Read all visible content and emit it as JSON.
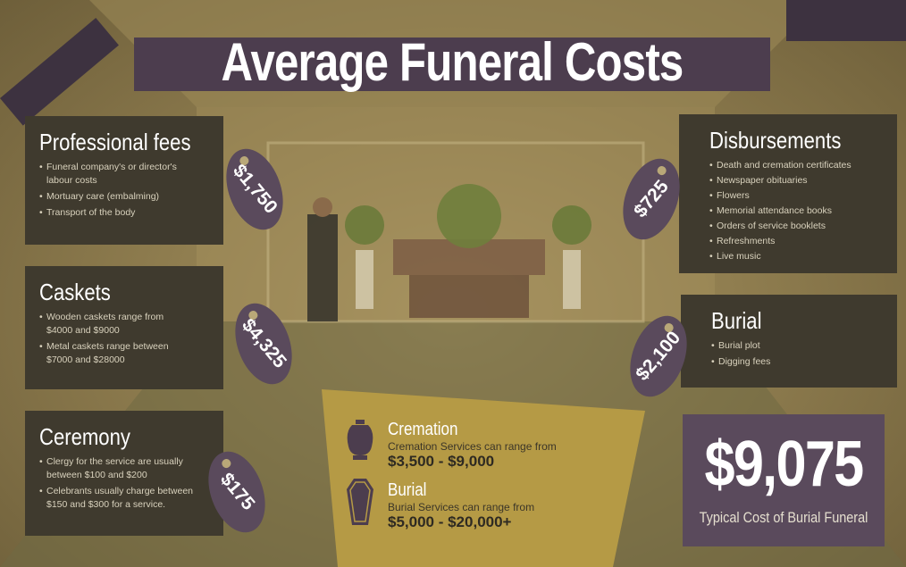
{
  "title": "Average Funeral Costs",
  "colors": {
    "panel": "#3f3a2e",
    "accent": "#5a4a5c",
    "gold": "#b59a45"
  },
  "sections": {
    "professional": {
      "heading": "Professional fees",
      "tag": "$1,750",
      "items": [
        "Funeral company's or director's labour costs",
        "Mortuary care (embalming)",
        "Transport of the body"
      ]
    },
    "caskets": {
      "heading": "Caskets",
      "tag": "$4,325",
      "items": [
        "Wooden caskets range from $4000 and $9000",
        "Metal caskets range between $7000 and $28000"
      ]
    },
    "ceremony": {
      "heading": "Ceremony",
      "tag": "$175",
      "items": [
        "Clergy for the service are usually between $100 and $200",
        "Celebrants usually charge between $150 and $300 for a service."
      ]
    },
    "disbursements": {
      "heading": "Disbursements",
      "tag": "$725",
      "items": [
        "Death and cremation certificates",
        "Newspaper obituaries",
        "Flowers",
        "Memorial attendance books",
        "Orders of service booklets",
        "Refreshments",
        "Live music"
      ]
    },
    "burial": {
      "heading": "Burial",
      "tag": "$2,100",
      "items": [
        "Burial plot",
        "Digging fees"
      ]
    }
  },
  "options": {
    "cremation": {
      "heading": "Cremation",
      "sub": "Cremation Services can range from",
      "range": "$3,500 - $9,000",
      "icon": "urn-icon"
    },
    "burial": {
      "heading": "Burial",
      "sub": "Burial Services can range from",
      "range": "$5,000 - $20,000+",
      "icon": "coffin-icon"
    }
  },
  "total": {
    "value": "$9,075",
    "label": "Typical Cost of Burial Funeral"
  }
}
